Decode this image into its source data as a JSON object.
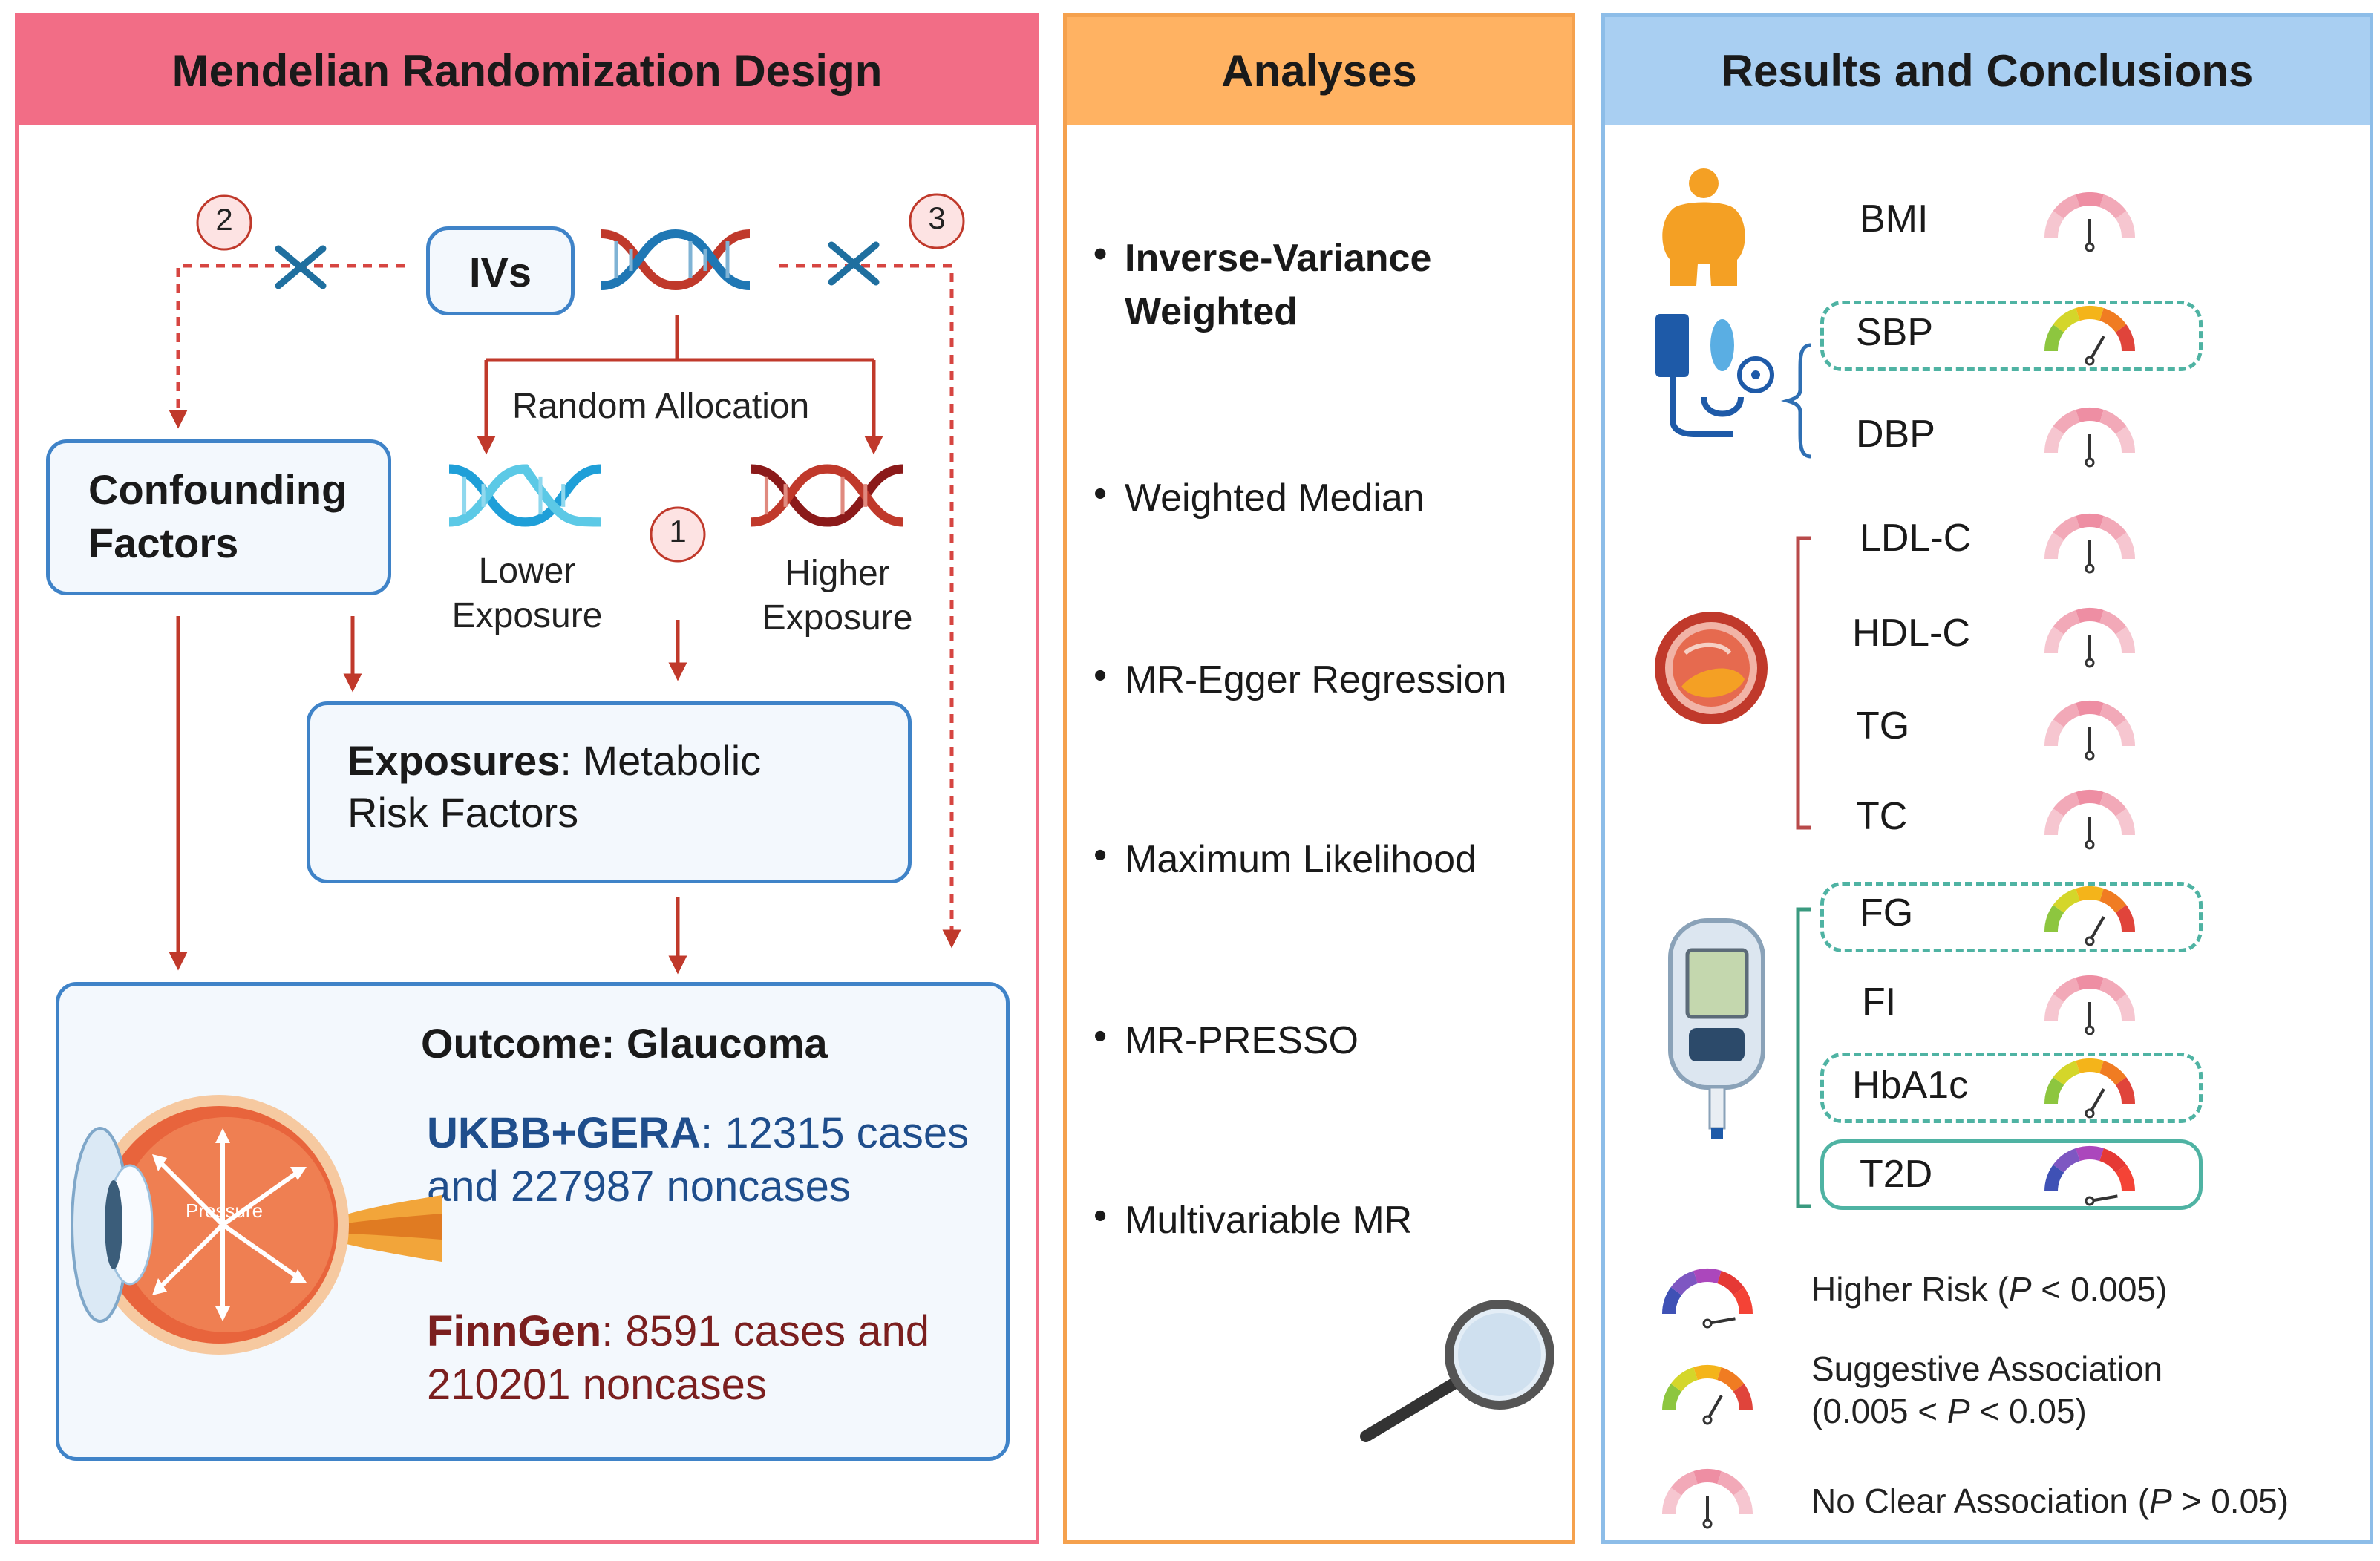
{
  "panels": {
    "design": {
      "title": "Mendelian Randomization Design",
      "color": "#f26d86",
      "border": "#f26d86"
    },
    "analyses": {
      "title": "Analyses",
      "color": "#ffb262",
      "border": "#f5a14d"
    },
    "results": {
      "title": "Results and Conclusions",
      "color": "#a9cff2",
      "border": "#8dbde8"
    }
  },
  "design": {
    "ivs_label": "IVs",
    "random_allocation": "Random Allocation",
    "lower_exposure": [
      "Lower",
      "Exposure"
    ],
    "higher_exposure": [
      "Higher",
      "Exposure"
    ],
    "confounding": [
      "Confounding",
      "Factors"
    ],
    "exposures_bold": "Exposures",
    "exposures_rest": ": Metabolic",
    "exposures_line2": "Risk Factors",
    "assumptions": [
      "1",
      "2",
      "3"
    ],
    "outcome_title": "Outcome: Glaucoma",
    "ukbb_bold": "UKBB+GERA",
    "ukbb_rest": ": 12315 cases",
    "ukbb_line2": "and 227987 noncases",
    "finngen_bold": "FinnGen",
    "finngen_rest": ": 8591 cases and",
    "finngen_line2": "210201 noncases",
    "pressure_label": "Pressure"
  },
  "analyses": {
    "items": [
      {
        "line1": "Inverse-Variance",
        "line2": "Weighted",
        "bold": true
      },
      {
        "line1": "Weighted Median"
      },
      {
        "line1": "MR-Egger Regression"
      },
      {
        "line1": "Maximum Likelihood"
      },
      {
        "line1": "MR-PRESSO"
      },
      {
        "line1": "Multivariable MR"
      }
    ]
  },
  "results": {
    "rows": [
      {
        "label": "BMI",
        "level": "none"
      },
      {
        "label": "SBP",
        "level": "suggestive"
      },
      {
        "label": "DBP",
        "level": "none"
      },
      {
        "label": "LDL-C",
        "level": "none"
      },
      {
        "label": "HDL-C",
        "level": "none"
      },
      {
        "label": "TG",
        "level": "none"
      },
      {
        "label": "TC",
        "level": "none"
      },
      {
        "label": "FG",
        "level": "suggestive"
      },
      {
        "label": "FI",
        "level": "none"
      },
      {
        "label": "HbA1c",
        "level": "suggestive"
      },
      {
        "label": "T2D",
        "level": "higher"
      }
    ],
    "legend": [
      {
        "level": "higher",
        "line1": "Higher Risk (",
        "p": "P",
        "line1b": " < 0.005)"
      },
      {
        "level": "suggestive",
        "line1": "Suggestive Association",
        "line2a": "(0.005 < ",
        "p": "P",
        "line2b": " < 0.05)"
      },
      {
        "level": "none",
        "line1": "No Clear Association (",
        "p": "P",
        "line1b": " > 0.05)"
      }
    ]
  },
  "colors": {
    "arrow_red": "#c0392b",
    "dash_red": "#d64541",
    "box_blue": "#3f83c8",
    "teal": "#4fb3a3",
    "ukbb_blue": "#1f4e8c",
    "finngen_red": "#7b1f1f"
  }
}
